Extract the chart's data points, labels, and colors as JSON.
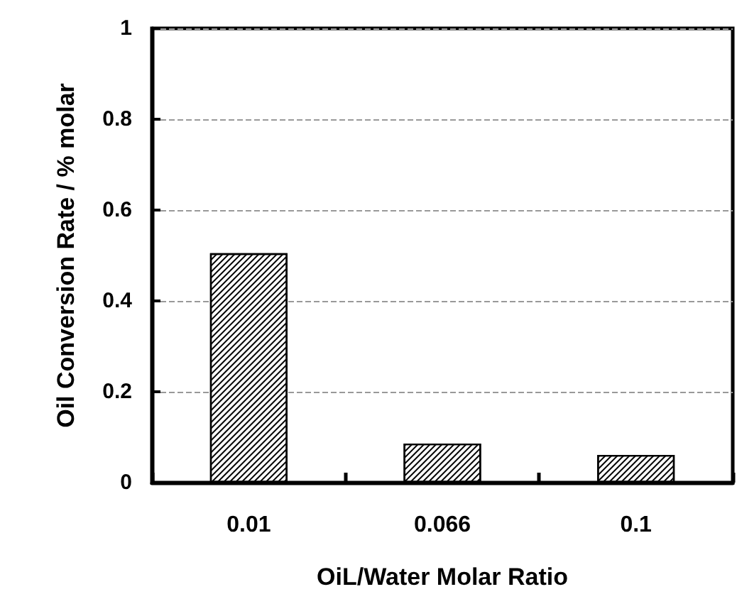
{
  "chart_data": {
    "type": "bar",
    "xlabel": "OiL/Water Molar Ratio",
    "ylabel": "Oil Conversion Rate / % molar",
    "categories": [
      "0.01",
      "0.066",
      "0.1"
    ],
    "values": [
      0.505,
      0.086,
      0.061
    ],
    "color": "#000000",
    "ylim": [
      0,
      1
    ],
    "yticks": [
      0,
      0.2,
      0.4,
      0.6,
      0.8,
      1
    ],
    "grid": "y"
  }
}
